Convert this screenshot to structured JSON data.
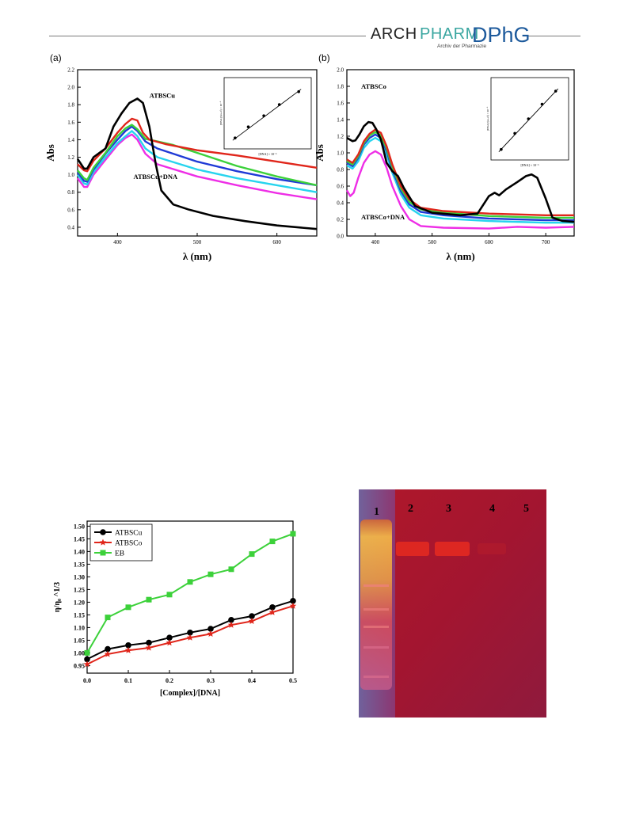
{
  "journal": {
    "brand_left": "ARCH",
    "brand_right": "PHARM",
    "subtitle": "Archiv der Pharmazie",
    "society": "DPhG"
  },
  "colors": {
    "black": "#000000",
    "red": "#e0261b",
    "green": "#3cd13a",
    "blue": "#1f3ad6",
    "cyan": "#27d4ee",
    "magenta": "#ee2ee6"
  },
  "panels": {
    "a_label": "(a)",
    "b_label": "(b)"
  },
  "chart_data": [
    {
      "id": "a",
      "type": "line",
      "xlabel": "λ (nm)",
      "ylabel": "Abs",
      "xlim": [
        350,
        650
      ],
      "ylim": [
        0.3,
        2.2
      ],
      "xticks": [
        400,
        500,
        600
      ],
      "yticks": [
        0.4,
        0.6,
        0.8,
        1.0,
        1.2,
        1.4,
        1.6,
        1.8,
        2.0,
        2.2
      ],
      "annotations": [
        {
          "text": "ATBSCu",
          "x": 440,
          "y": 1.88,
          "ax": 428,
          "ay": 1.75
        },
        {
          "text": "ATBSCu+DNA",
          "x": 420,
          "y": 0.95,
          "ax": 420,
          "ay": 1.22
        }
      ],
      "series": [
        {
          "color": "black",
          "points": [
            [
              350,
              1.18
            ],
            [
              358,
              1.07
            ],
            [
              362,
              1.07
            ],
            [
              370,
              1.2
            ],
            [
              385,
              1.3
            ],
            [
              395,
              1.55
            ],
            [
              405,
              1.7
            ],
            [
              415,
              1.82
            ],
            [
              425,
              1.87
            ],
            [
              432,
              1.82
            ],
            [
              440,
              1.55
            ],
            [
              448,
              1.12
            ],
            [
              455,
              0.82
            ],
            [
              470,
              0.66
            ],
            [
              490,
              0.6
            ],
            [
              520,
              0.53
            ],
            [
              560,
              0.47
            ],
            [
              600,
              0.42
            ],
            [
              650,
              0.38
            ]
          ]
        },
        {
          "color": "red",
          "points": [
            [
              350,
              1.12
            ],
            [
              358,
              1.05
            ],
            [
              362,
              1.04
            ],
            [
              370,
              1.16
            ],
            [
              385,
              1.3
            ],
            [
              400,
              1.48
            ],
            [
              410,
              1.58
            ],
            [
              418,
              1.64
            ],
            [
              425,
              1.62
            ],
            [
              432,
              1.48
            ],
            [
              440,
              1.4
            ],
            [
              460,
              1.35
            ],
            [
              500,
              1.28
            ],
            [
              550,
              1.22
            ],
            [
              600,
              1.15
            ],
            [
              650,
              1.08
            ]
          ]
        },
        {
          "color": "green",
          "points": [
            [
              350,
              1.05
            ],
            [
              358,
              0.96
            ],
            [
              362,
              0.94
            ],
            [
              370,
              1.08
            ],
            [
              385,
              1.25
            ],
            [
              400,
              1.44
            ],
            [
              410,
              1.53
            ],
            [
              418,
              1.57
            ],
            [
              425,
              1.52
            ],
            [
              435,
              1.41
            ],
            [
              450,
              1.38
            ],
            [
              470,
              1.34
            ],
            [
              500,
              1.25
            ],
            [
              550,
              1.1
            ],
            [
              600,
              0.98
            ],
            [
              650,
              0.88
            ]
          ]
        },
        {
          "color": "blue",
          "points": [
            [
              350,
              1.03
            ],
            [
              358,
              0.93
            ],
            [
              362,
              0.92
            ],
            [
              370,
              1.06
            ],
            [
              385,
              1.24
            ],
            [
              400,
              1.4
            ],
            [
              410,
              1.5
            ],
            [
              418,
              1.55
            ],
            [
              425,
              1.5
            ],
            [
              435,
              1.38
            ],
            [
              450,
              1.3
            ],
            [
              500,
              1.15
            ],
            [
              550,
              1.04
            ],
            [
              600,
              0.95
            ],
            [
              650,
              0.88
            ]
          ]
        },
        {
          "color": "cyan",
          "points": [
            [
              350,
              1.0
            ],
            [
              358,
              0.9
            ],
            [
              362,
              0.89
            ],
            [
              370,
              1.03
            ],
            [
              385,
              1.2
            ],
            [
              400,
              1.36
            ],
            [
              410,
              1.44
            ],
            [
              418,
              1.5
            ],
            [
              425,
              1.44
            ],
            [
              435,
              1.3
            ],
            [
              450,
              1.2
            ],
            [
              500,
              1.06
            ],
            [
              550,
              0.96
            ],
            [
              600,
              0.88
            ],
            [
              650,
              0.8
            ]
          ]
        },
        {
          "color": "magenta",
          "points": [
            [
              350,
              0.96
            ],
            [
              358,
              0.86
            ],
            [
              362,
              0.86
            ],
            [
              370,
              1.0
            ],
            [
              385,
              1.17
            ],
            [
              400,
              1.34
            ],
            [
              410,
              1.42
            ],
            [
              418,
              1.46
            ],
            [
              425,
              1.4
            ],
            [
              435,
              1.24
            ],
            [
              450,
              1.12
            ],
            [
              500,
              0.98
            ],
            [
              550,
              0.88
            ],
            [
              600,
              0.79
            ],
            [
              650,
              0.72
            ]
          ]
        }
      ],
      "inset": {
        "xlabel": "[DNA] × 10⁻⁶",
        "ylabel": "[DNA]/(εa-εf) × 10⁻⁹",
        "points": [
          [
            0.08,
            0.1
          ],
          [
            0.25,
            0.28
          ],
          [
            0.45,
            0.46
          ],
          [
            0.65,
            0.64
          ],
          [
            0.9,
            0.85
          ]
        ]
      }
    },
    {
      "id": "b",
      "type": "line",
      "xlabel": "λ (nm)",
      "ylabel": "Abs",
      "xlim": [
        350,
        750
      ],
      "ylim": [
        0.0,
        2.0
      ],
      "xticks": [
        400,
        500,
        600,
        700
      ],
      "yticks": [
        0.0,
        0.2,
        0.4,
        0.6,
        0.8,
        1.0,
        1.2,
        1.4,
        1.6,
        1.8,
        2.0
      ],
      "annotations": [
        {
          "text": "ATBSCo",
          "x": 375,
          "y": 1.77,
          "ax": 388,
          "ay": 1.42
        },
        {
          "text": "ATBSCo+DNA",
          "x": 375,
          "y": 0.2,
          "ax": 400,
          "ay": 0.8
        }
      ],
      "series": [
        {
          "color": "black",
          "points": [
            [
              350,
              1.18
            ],
            [
              360,
              1.14
            ],
            [
              365,
              1.15
            ],
            [
              372,
              1.22
            ],
            [
              380,
              1.32
            ],
            [
              388,
              1.37
            ],
            [
              395,
              1.36
            ],
            [
              402,
              1.28
            ],
            [
              410,
              1.16
            ],
            [
              420,
              0.88
            ],
            [
              430,
              0.78
            ],
            [
              440,
              0.72
            ],
            [
              450,
              0.58
            ],
            [
              470,
              0.36
            ],
            [
              500,
              0.28
            ],
            [
              550,
              0.25
            ],
            [
              580,
              0.27
            ],
            [
              600,
              0.48
            ],
            [
              610,
              0.52
            ],
            [
              618,
              0.49
            ],
            [
              630,
              0.56
            ],
            [
              650,
              0.65
            ],
            [
              665,
              0.72
            ],
            [
              675,
              0.74
            ],
            [
              685,
              0.7
            ],
            [
              700,
              0.45
            ],
            [
              712,
              0.22
            ],
            [
              730,
              0.18
            ],
            [
              750,
              0.17
            ]
          ]
        },
        {
          "color": "red",
          "points": [
            [
              350,
              0.92
            ],
            [
              360,
              0.88
            ],
            [
              370,
              0.98
            ],
            [
              380,
              1.14
            ],
            [
              390,
              1.23
            ],
            [
              400,
              1.28
            ],
            [
              410,
              1.24
            ],
            [
              420,
              1.08
            ],
            [
              430,
              0.86
            ],
            [
              445,
              0.6
            ],
            [
              460,
              0.44
            ],
            [
              480,
              0.34
            ],
            [
              520,
              0.3
            ],
            [
              600,
              0.27
            ],
            [
              700,
              0.25
            ],
            [
              750,
              0.25
            ]
          ]
        },
        {
          "color": "green",
          "points": [
            [
              350,
              0.9
            ],
            [
              360,
              0.86
            ],
            [
              370,
              0.96
            ],
            [
              380,
              1.12
            ],
            [
              390,
              1.21
            ],
            [
              400,
              1.25
            ],
            [
              410,
              1.21
            ],
            [
              420,
              1.05
            ],
            [
              430,
              0.83
            ],
            [
              445,
              0.57
            ],
            [
              460,
              0.41
            ],
            [
              480,
              0.32
            ],
            [
              520,
              0.28
            ],
            [
              600,
              0.24
            ],
            [
              700,
              0.22
            ],
            [
              750,
              0.22
            ]
          ]
        },
        {
          "color": "blue",
          "points": [
            [
              350,
              0.88
            ],
            [
              360,
              0.84
            ],
            [
              370,
              0.94
            ],
            [
              380,
              1.1
            ],
            [
              390,
              1.18
            ],
            [
              400,
              1.22
            ],
            [
              410,
              1.18
            ],
            [
              420,
              1.02
            ],
            [
              430,
              0.8
            ],
            [
              445,
              0.54
            ],
            [
              460,
              0.38
            ],
            [
              480,
              0.29
            ],
            [
              520,
              0.25
            ],
            [
              600,
              0.21
            ],
            [
              700,
              0.19
            ],
            [
              750,
              0.19
            ]
          ]
        },
        {
          "color": "cyan",
          "points": [
            [
              350,
              0.85
            ],
            [
              360,
              0.81
            ],
            [
              370,
              0.9
            ],
            [
              380,
              1.06
            ],
            [
              390,
              1.14
            ],
            [
              400,
              1.18
            ],
            [
              410,
              1.14
            ],
            [
              420,
              0.98
            ],
            [
              430,
              0.76
            ],
            [
              445,
              0.5
            ],
            [
              460,
              0.34
            ],
            [
              480,
              0.25
            ],
            [
              520,
              0.21
            ],
            [
              600,
              0.18
            ],
            [
              700,
              0.16
            ],
            [
              750,
              0.16
            ]
          ]
        },
        {
          "color": "magenta",
          "points": [
            [
              350,
              0.55
            ],
            [
              356,
              0.48
            ],
            [
              362,
              0.52
            ],
            [
              370,
              0.7
            ],
            [
              380,
              0.88
            ],
            [
              390,
              0.98
            ],
            [
              400,
              1.02
            ],
            [
              410,
              0.98
            ],
            [
              420,
              0.82
            ],
            [
              430,
              0.6
            ],
            [
              445,
              0.36
            ],
            [
              460,
              0.2
            ],
            [
              480,
              0.12
            ],
            [
              520,
              0.1
            ],
            [
              600,
              0.09
            ],
            [
              650,
              0.11
            ],
            [
              700,
              0.1
            ],
            [
              750,
              0.11
            ]
          ]
        }
      ],
      "inset": {
        "xlabel": "[DNA] × 10⁻⁶",
        "ylabel": "[DNA]/(εa-εf) × 10⁻⁹",
        "points": [
          [
            0.08,
            0.08
          ],
          [
            0.28,
            0.3
          ],
          [
            0.48,
            0.5
          ],
          [
            0.68,
            0.7
          ],
          [
            0.88,
            0.88
          ]
        ]
      }
    },
    {
      "id": "viscosity",
      "type": "line",
      "xlabel": "[Complex]/[DNA]",
      "ylabel": "η/η₀ ^1/3",
      "xlim": [
        0.0,
        0.5
      ],
      "ylim": [
        0.92,
        1.52
      ],
      "xticks": [
        0.0,
        0.1,
        0.2,
        0.3,
        0.4,
        0.5
      ],
      "yticks": [
        0.95,
        1.0,
        1.05,
        1.1,
        1.15,
        1.2,
        1.25,
        1.3,
        1.35,
        1.4,
        1.45,
        1.5
      ],
      "legend_position": "top-left",
      "x": [
        0.0,
        0.05,
        0.1,
        0.15,
        0.2,
        0.25,
        0.3,
        0.35,
        0.4,
        0.45,
        0.5
      ],
      "series": [
        {
          "name": "ATBSCu",
          "color": "black",
          "marker": "circle",
          "values": [
            0.975,
            1.015,
            1.03,
            1.04,
            1.06,
            1.08,
            1.095,
            1.13,
            1.145,
            1.18,
            1.205
          ]
        },
        {
          "name": "ATBSCo",
          "color": "red",
          "marker": "star",
          "values": [
            0.955,
            0.995,
            1.01,
            1.02,
            1.04,
            1.06,
            1.075,
            1.11,
            1.125,
            1.16,
            1.185
          ]
        },
        {
          "name": "EB",
          "color": "green",
          "marker": "square",
          "values": [
            1.0,
            1.14,
            1.18,
            1.21,
            1.23,
            1.28,
            1.31,
            1.33,
            1.39,
            1.44,
            1.47
          ]
        }
      ]
    }
  ],
  "gel": {
    "lanes": [
      "1",
      "2",
      "3",
      "4",
      "5"
    ]
  }
}
